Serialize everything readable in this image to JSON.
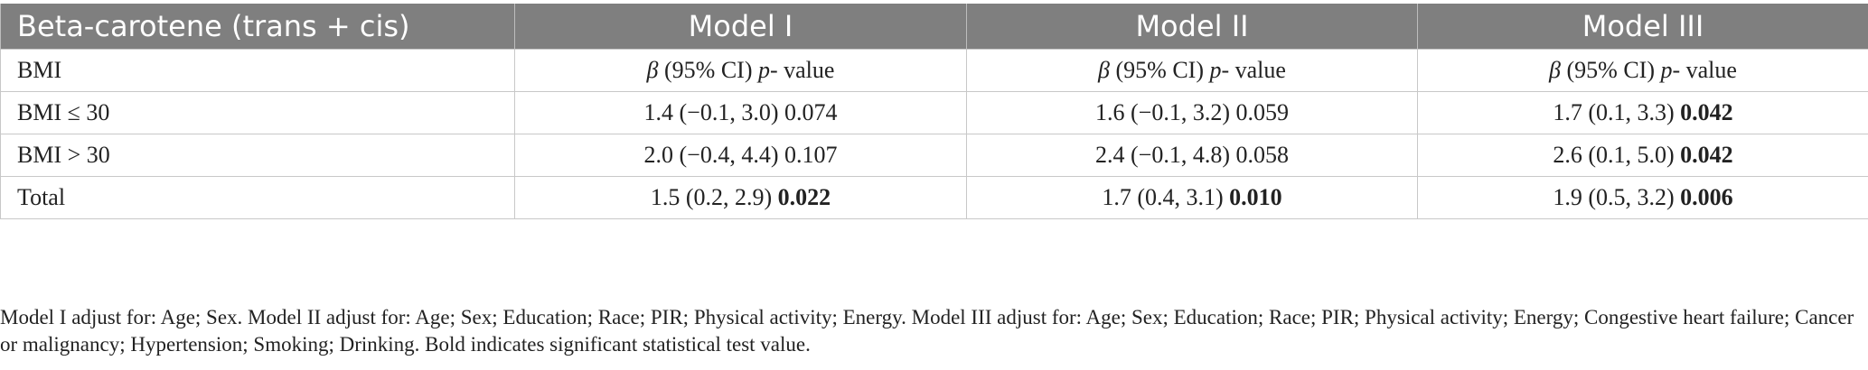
{
  "table": {
    "headers": [
      "Beta-carotene (trans + cis)",
      "Model I",
      "Model II",
      "Model III"
    ],
    "stat_header": {
      "row_label": "BMI",
      "beta": "β",
      "ci": " (95% CI) ",
      "p": "p",
      "value": "- value"
    },
    "rows": [
      {
        "label": "BMI ≤ 30",
        "cells": [
          {
            "est": "1.4 (−0.1, 3.0) ",
            "p": "0.074",
            "bold": false
          },
          {
            "est": "1.6 (−0.1, 3.2) ",
            "p": "0.059",
            "bold": false
          },
          {
            "est": "1.7 (0.1, 3.3) ",
            "p": "0.042",
            "bold": true
          }
        ]
      },
      {
        "label": "BMI > 30",
        "cells": [
          {
            "est": "2.0 (−0.4, 4.4) ",
            "p": "0.107",
            "bold": false
          },
          {
            "est": "2.4 (−0.1, 4.8) ",
            "p": "0.058",
            "bold": false
          },
          {
            "est": "2.6 (0.1, 5.0) ",
            "p": "0.042",
            "bold": true
          }
        ]
      },
      {
        "label": "Total",
        "cells": [
          {
            "est": "1.5 (0.2, 2.9) ",
            "p": "0.022",
            "bold": true
          },
          {
            "est": "1.7 (0.4, 3.1) ",
            "p": "0.010",
            "bold": true
          },
          {
            "est": "1.9 (0.5, 3.2) ",
            "p": "0.006",
            "bold": true
          }
        ]
      }
    ]
  },
  "footnote": "Model I adjust for: Age; Sex. Model II adjust for: Age; Sex; Education; Race; PIR; Physical activity; Energy. Model III adjust for: Age; Sex; Education; Race; PIR; Physical activity; Energy; Congestive heart failure; Cancer or malignancy; Hypertension; Smoking; Drinking. Bold indicates significant statistical test value.",
  "colors": {
    "header_bg": "#7f7f7f",
    "header_text": "#ffffff",
    "grid": "#c8c8c8"
  }
}
